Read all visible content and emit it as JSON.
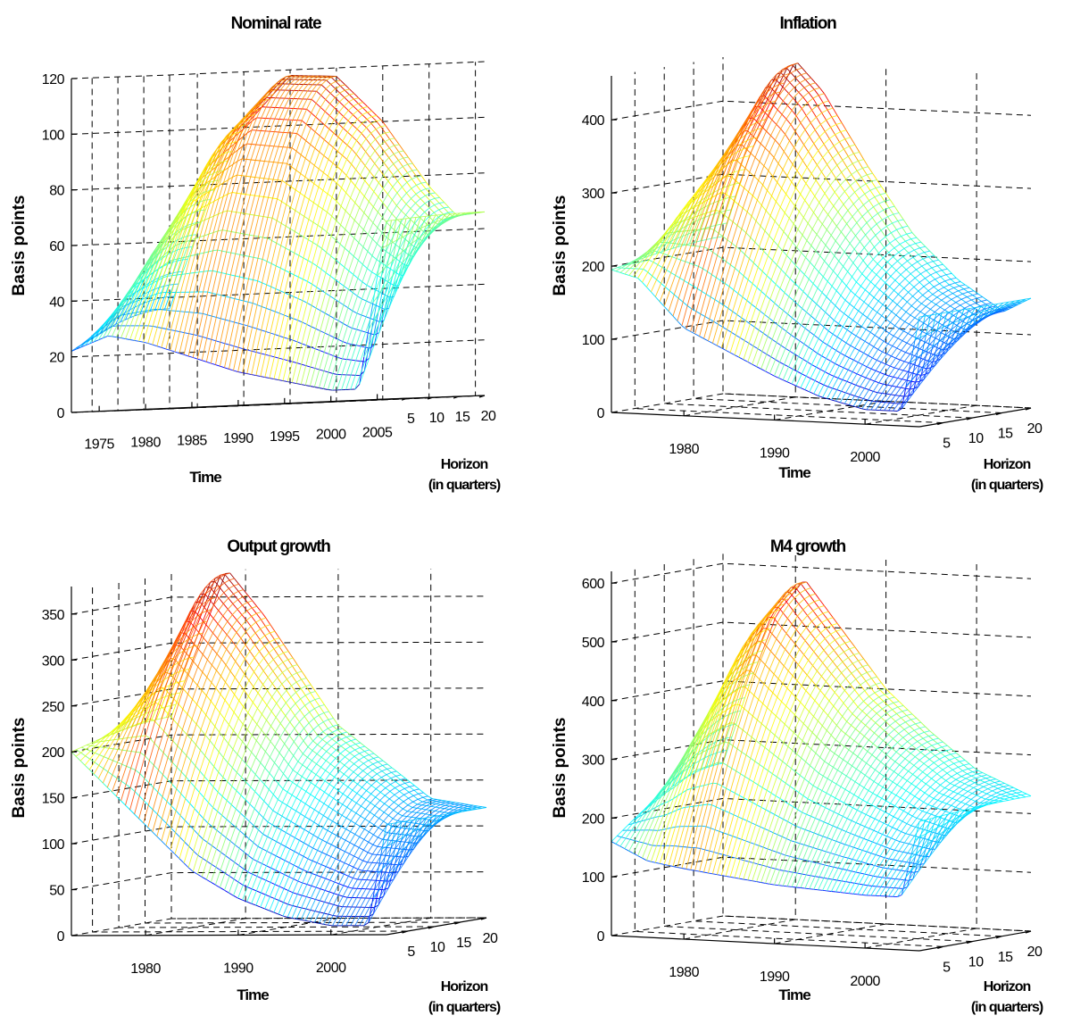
{
  "chart_data": [
    {
      "type": "surface",
      "title": "Nominal rate",
      "zlabel": "Basis points",
      "xlabel": "Time",
      "ylabel": [
        "Horizon",
        "(in quarters)"
      ],
      "zlim": [
        0,
        120
      ],
      "zticks": [
        0,
        20,
        40,
        60,
        80,
        100,
        120
      ],
      "tlim": [
        1972,
        2006
      ],
      "time_ticks": [
        1975,
        1980,
        1985,
        1990,
        1995,
        2000,
        2005
      ],
      "horizon_ticks": [
        5,
        10,
        15,
        20
      ],
      "horizon_range": [
        1,
        20
      ],
      "horizon1_time": [
        1972,
        1976,
        1980,
        1985,
        1990,
        1995,
        2000,
        2003,
        2006
      ],
      "horizon1_values": [
        22,
        27,
        24,
        18,
        12,
        8,
        4,
        4,
        64
      ],
      "horizon20_time": [
        1972,
        1976,
        1980,
        1985,
        1990,
        1995,
        2000,
        2003,
        2006
      ],
      "horizon20_values": [
        36,
        72,
        100,
        118,
        117,
        100,
        76,
        65,
        66
      ]
    },
    {
      "type": "surface",
      "title": "Inflation",
      "zlabel": "Basis points",
      "xlabel": "Time",
      "ylabel": [
        "Horizon",
        "(in quarters)"
      ],
      "zlim": [
        0,
        460
      ],
      "zticks": [
        0,
        100,
        200,
        300,
        400
      ],
      "tlim": [
        1972,
        2006
      ],
      "time_ticks": [
        1980,
        1990,
        2000
      ],
      "horizon_ticks": [
        5,
        10,
        15,
        20
      ],
      "horizon_range": [
        1,
        20
      ],
      "horizon1_time": [
        1972,
        1975,
        1980,
        1985,
        1990,
        1995,
        2000,
        2004,
        2006
      ],
      "horizon1_values": [
        195,
        185,
        120,
        90,
        60,
        35,
        20,
        20,
        150
      ],
      "horizon20_time": [
        1972,
        1975,
        1980,
        1983,
        1988,
        1993,
        1998,
        2003,
        2006
      ],
      "horizon20_values": [
        215,
        330,
        460,
        420,
        320,
        230,
        170,
        130,
        150
      ]
    },
    {
      "type": "surface",
      "title": "Output growth",
      "zlabel": "Basis points",
      "xlabel": "Time",
      "ylabel": [
        "Horizon",
        "(in quarters)"
      ],
      "zlim": [
        0,
        380
      ],
      "zticks": [
        0,
        50,
        100,
        150,
        200,
        250,
        300,
        350
      ],
      "tlim": [
        1972,
        2006
      ],
      "time_ticks": [
        1980,
        1990,
        2000
      ],
      "horizon_ticks": [
        5,
        10,
        15,
        20
      ],
      "horizon_range": [
        1,
        20
      ],
      "horizon1_time": [
        1972,
        1976,
        1980,
        1985,
        1990,
        1995,
        2000,
        2004,
        2006
      ],
      "horizon1_values": [
        200,
        160,
        120,
        70,
        40,
        20,
        10,
        10,
        120
      ],
      "horizon20_time": [
        1972,
        1975,
        1978,
        1982,
        1986,
        1990,
        1995,
        2000,
        2006
      ],
      "horizon20_values": [
        220,
        300,
        380,
        330,
        270,
        210,
        170,
        130,
        120
      ]
    },
    {
      "type": "surface",
      "title": "M4 growth",
      "zlabel": "Basis points",
      "xlabel": "Time",
      "ylabel": [
        "Horizon",
        "(in quarters)"
      ],
      "zlim": [
        0,
        620
      ],
      "zticks": [
        0,
        100,
        200,
        300,
        400,
        500,
        600
      ],
      "tlim": [
        1972,
        2006
      ],
      "time_ticks": [
        1980,
        1990,
        2000
      ],
      "horizon_ticks": [
        5,
        10,
        15,
        20
      ],
      "horizon_range": [
        1,
        20
      ],
      "horizon1_time": [
        1972,
        1976,
        1980,
        1985,
        1990,
        1995,
        2000,
        2004,
        2006
      ],
      "horizon1_values": [
        160,
        130,
        120,
        110,
        100,
        95,
        90,
        90,
        220
      ],
      "horizon20_time": [
        1972,
        1975,
        1978,
        1981,
        1985,
        1990,
        1995,
        2000,
        2006
      ],
      "horizon20_values": [
        260,
        400,
        520,
        580,
        500,
        400,
        330,
        270,
        230
      ]
    }
  ]
}
